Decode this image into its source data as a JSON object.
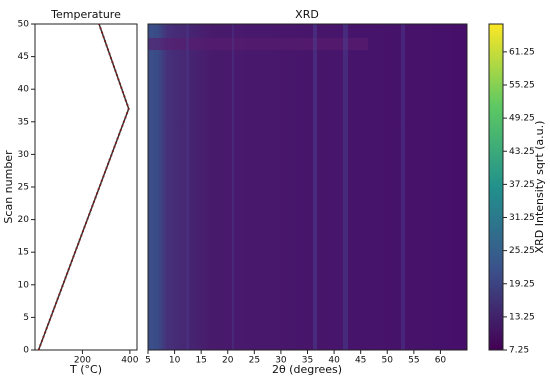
{
  "chart_data": [
    {
      "type": "line",
      "title": "Temperature",
      "xlabel": "T (°C)",
      "ylabel": "Scan number",
      "x": [
        15,
        395,
        270
      ],
      "values": [
        0,
        37,
        50
      ],
      "color": "#8b1a1a",
      "xlim": [
        0,
        430
      ],
      "xticks": [
        200,
        400
      ],
      "ylim": [
        0,
        50
      ],
      "yticks": [
        0,
        5,
        10,
        15,
        20,
        25,
        30,
        35,
        40,
        45,
        50
      ],
      "grid": false
    },
    {
      "type": "heatmap",
      "title": "XRD",
      "xlabel": "2θ (degrees)",
      "xlim": [
        5,
        65
      ],
      "xticks": [
        5,
        10,
        15,
        20,
        25,
        30,
        35,
        40,
        45,
        50,
        55,
        60
      ],
      "ylim": [
        0,
        50
      ],
      "colorbar": {
        "label": "XRD Intensity sqrt (a.u.)",
        "lim": [
          7.25,
          66.3
        ],
        "ticks": [
          7.25,
          13.25,
          19.25,
          25.25,
          31.25,
          37.25,
          43.25,
          49.25,
          55.25,
          61.25
        ]
      }
    }
  ]
}
